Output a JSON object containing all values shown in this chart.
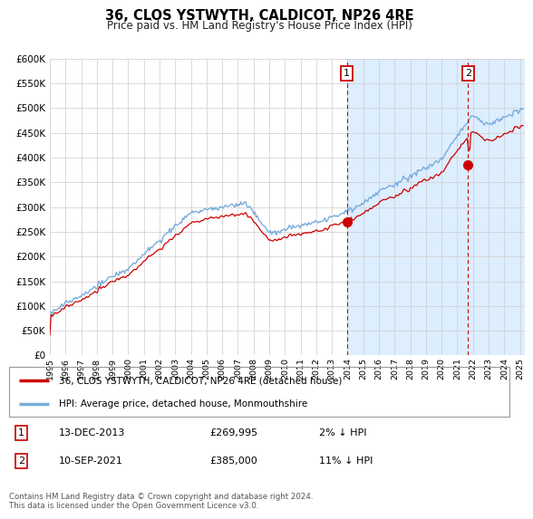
{
  "title": "36, CLOS YSTWYTH, CALDICOT, NP26 4RE",
  "subtitle": "Price paid vs. HM Land Registry's House Price Index (HPI)",
  "hpi_label": "HPI: Average price, detached house, Monmouthshire",
  "property_label": "36, CLOS YSTWYTH, CALDICOT, NP26 4RE (detached house)",
  "sale1_date": "13-DEC-2013",
  "sale1_price": 269995,
  "sale1_note": "2% ↓ HPI",
  "sale1_t": 2013.958,
  "sale2_date": "10-SEP-2021",
  "sale2_price": 385000,
  "sale2_note": "11% ↓ HPI",
  "sale2_t": 2021.692,
  "footer": "Contains HM Land Registry data © Crown copyright and database right 2024.\nThis data is licensed under the Open Government Licence v3.0.",
  "hpi_color": "#7aaddb",
  "property_color": "#cc0000",
  "chart_bg": "#ffffff",
  "shade_color": "#ddeeff",
  "grid_color": "#cccccc",
  "vline_color": "#cc0000",
  "ylim_max": 600000,
  "xlim_min": 1995.0,
  "xlim_max": 2025.3
}
